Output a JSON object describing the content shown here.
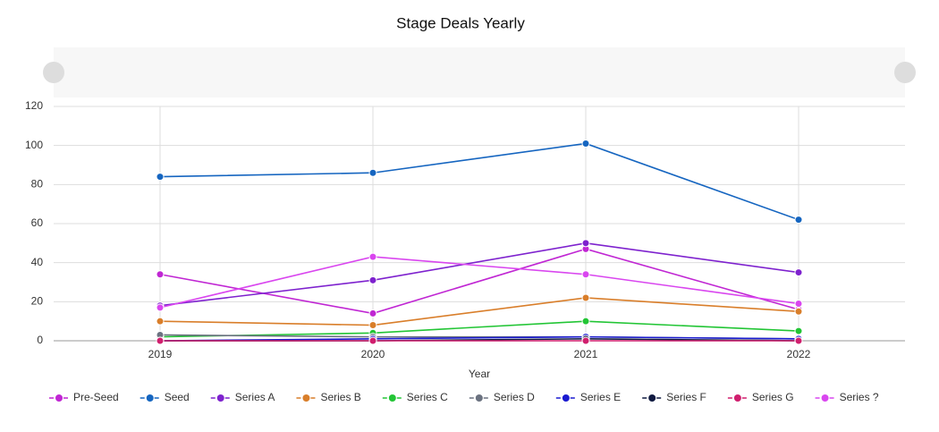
{
  "chart_data": {
    "type": "line",
    "title": "Stage Deals Yearly",
    "x_label": "Year",
    "categories": [
      "2019",
      "2020",
      "2021",
      "2022"
    ],
    "ylim": [
      0,
      120
    ],
    "yticks": [
      0,
      20,
      40,
      60,
      80,
      100,
      120
    ],
    "grid": true,
    "series": [
      {
        "name": "Pre-Seed",
        "color": "#c026d3",
        "values": [
          34,
          14,
          47,
          16
        ]
      },
      {
        "name": "Seed",
        "color": "#1565c0",
        "values": [
          84,
          86,
          101,
          62
        ]
      },
      {
        "name": "Series A",
        "color": "#7e22ce",
        "values": [
          18,
          31,
          50,
          35
        ]
      },
      {
        "name": "Series B",
        "color": "#d97e2a",
        "values": [
          10,
          8,
          22,
          15
        ]
      },
      {
        "name": "Series C",
        "color": "#22c535",
        "values": [
          2,
          4,
          10,
          5
        ]
      },
      {
        "name": "Series D",
        "color": "#6b7280",
        "values": [
          3,
          2,
          2,
          1
        ]
      },
      {
        "name": "Series E",
        "color": "#1a1ad0",
        "values": [
          0,
          1,
          2,
          1
        ]
      },
      {
        "name": "Series F",
        "color": "#0f1a40",
        "values": [
          0,
          0,
          1,
          0
        ]
      },
      {
        "name": "Series G",
        "color": "#d01f6e",
        "values": [
          0,
          0,
          0,
          0
        ]
      },
      {
        "name": "Series ?",
        "color": "#d946ef",
        "values": [
          17,
          43,
          34,
          19
        ]
      }
    ]
  }
}
